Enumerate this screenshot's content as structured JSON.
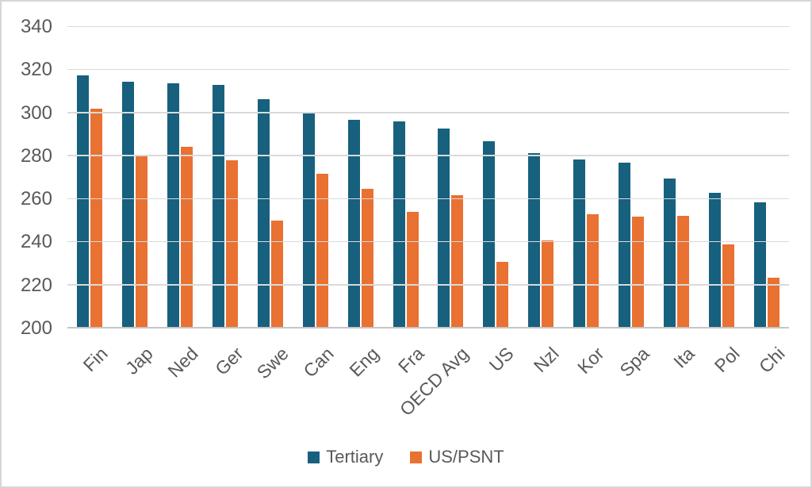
{
  "chart_data": {
    "type": "bar",
    "title": "",
    "xlabel": "",
    "ylabel": "",
    "categories": [
      "Fin",
      "Jap",
      "Ned",
      "Ger",
      "Swe",
      "Can",
      "Eng",
      "Fra",
      "OECD Avg",
      "US",
      "Nzl",
      "Kor",
      "Spa",
      "Ita",
      "Pol",
      "Chi"
    ],
    "series": [
      {
        "name": "Tertiary",
        "color": "#17607E",
        "values": [
          317.5,
          314.5,
          314,
          313,
          306.5,
          300,
          297,
          296,
          293,
          287,
          281.5,
          278.5,
          277,
          269.5,
          263,
          258.5
        ]
      },
      {
        "name": "US/PSNT",
        "color": "#E97132",
        "values": [
          302,
          280,
          284.5,
          278,
          250,
          272,
          265,
          254,
          262,
          231,
          241,
          253,
          252,
          252.5,
          239,
          223.5
        ]
      }
    ],
    "ylim": [
      200,
      340
    ],
    "yticks": [
      200,
      220,
      240,
      260,
      280,
      300,
      320,
      340
    ],
    "grid": true,
    "legend_position": "bottom-center",
    "axis_text_color": "#595959",
    "gridline_color": "#DADADA"
  }
}
